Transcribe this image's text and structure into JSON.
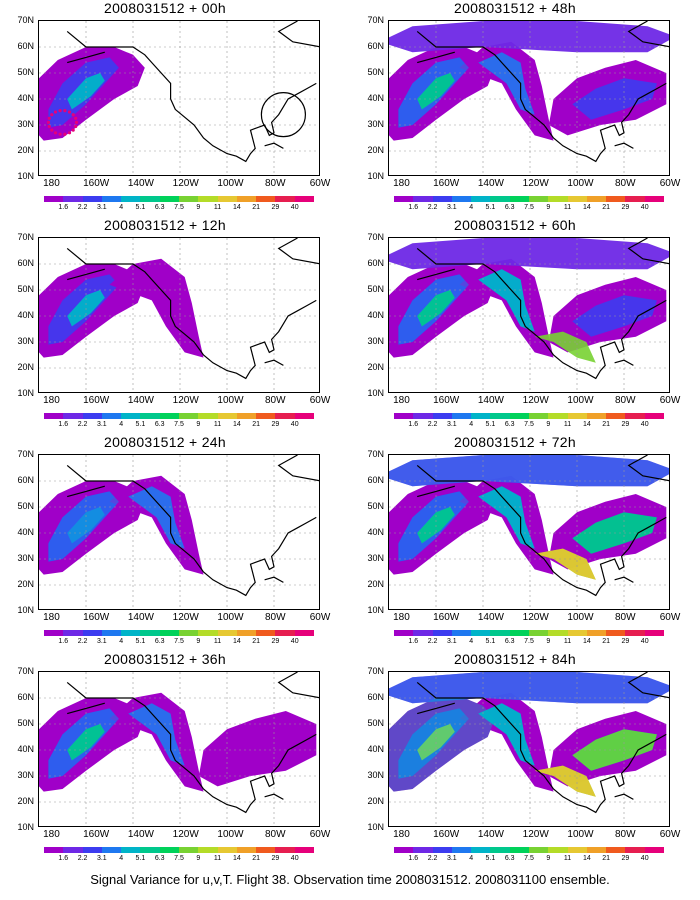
{
  "caption": "Signal Variance for u,v,T. Flight 38. Observation time 2008031512. 2008031100 ensemble.",
  "lat_labels": [
    "70N",
    "60N",
    "50N",
    "40N",
    "30N",
    "20N",
    "10N"
  ],
  "lon_labels": [
    "180",
    "160W",
    "140W",
    "120W",
    "100W",
    "80W",
    "60W"
  ],
  "colorbar": {
    "colors": [
      "#a000c8",
      "#6e28e6",
      "#3c3cf0",
      "#1e78f0",
      "#00b4c8",
      "#00c88c",
      "#00d25a",
      "#78d232",
      "#b4dc28",
      "#e6c832",
      "#f0a028",
      "#f05a1e",
      "#e61e50",
      "#e6007a"
    ],
    "labels": [
      "1.6",
      "2.2",
      "3.1",
      "4",
      "5.1",
      "6.3",
      "7.5",
      "9",
      "11",
      "14",
      "21",
      "29",
      "40"
    ]
  },
  "panels": [
    {
      "title": "2008031512 + 00h",
      "intensity": 0,
      "marker": true
    },
    {
      "title": "2008031512 + 12h",
      "intensity": 1,
      "marker": false
    },
    {
      "title": "2008031512 + 24h",
      "intensity": 2,
      "marker": false
    },
    {
      "title": "2008031512 + 36h",
      "intensity": 3,
      "marker": false
    },
    {
      "title": "2008031512 + 48h",
      "intensity": 4,
      "marker": false
    },
    {
      "title": "2008031512 + 60h",
      "intensity": 5,
      "marker": false
    },
    {
      "title": "2008031512 + 72h",
      "intensity": 6,
      "marker": false
    },
    {
      "title": "2008031512 + 84h",
      "intensity": 7,
      "marker": false
    }
  ]
}
